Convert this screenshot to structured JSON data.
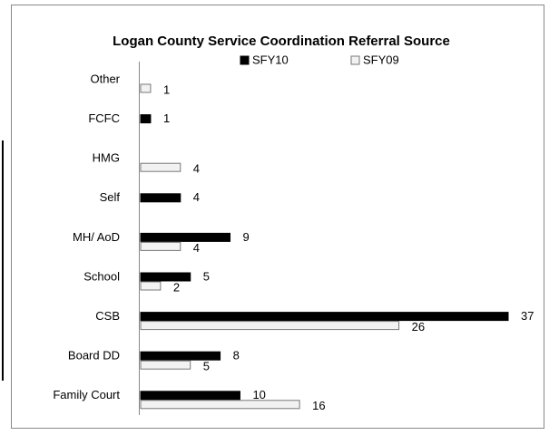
{
  "chart_data": {
    "type": "hbar",
    "title": "Logan County Service Coordination Referral Source",
    "categories": [
      "Other",
      "FCFC",
      "HMG",
      "Self",
      "MH/ AoD",
      "School",
      "CSB",
      "Board DD",
      "Family Court"
    ],
    "series": [
      {
        "name": "SFY10",
        "color": "#000000",
        "values": [
          null,
          1,
          null,
          4,
          9,
          5,
          37,
          8,
          10
        ]
      },
      {
        "name": "SFY09",
        "color": "#f2f2f2",
        "values": [
          1,
          null,
          4,
          null,
          4,
          2,
          26,
          5,
          16
        ]
      }
    ],
    "xlim": [
      0,
      37
    ]
  }
}
